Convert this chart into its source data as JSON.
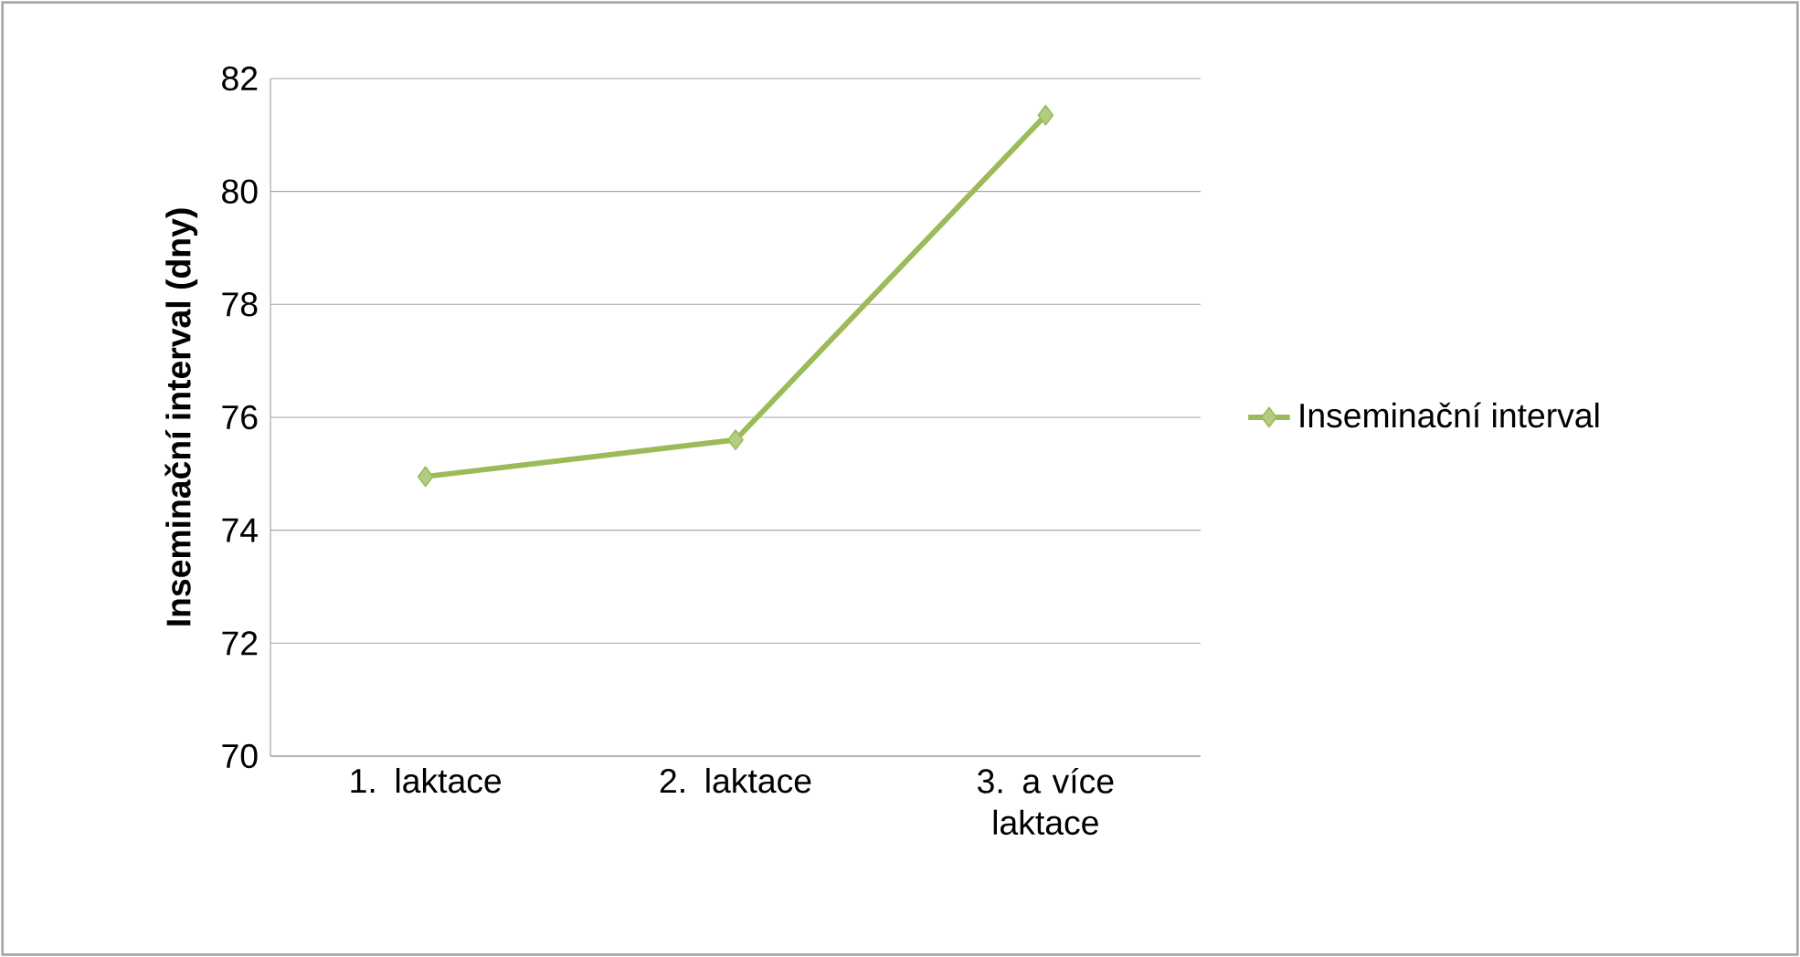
{
  "chart_data": {
    "type": "line",
    "ylabel": "Inseminační interval (dny)",
    "categories": [
      "1. laktace",
      "2. laktace",
      "3. a více laktace"
    ],
    "series": [
      {
        "name": "Inseminační interval",
        "color": "#9bbb59",
        "values": [
          74.95,
          75.6,
          81.35
        ]
      }
    ],
    "ylim": [
      70,
      82
    ],
    "yticks": [
      70,
      72,
      74,
      76,
      78,
      80,
      82
    ],
    "grid": "y",
    "legend": "right",
    "marker": "diamond",
    "line_style": "solid"
  }
}
